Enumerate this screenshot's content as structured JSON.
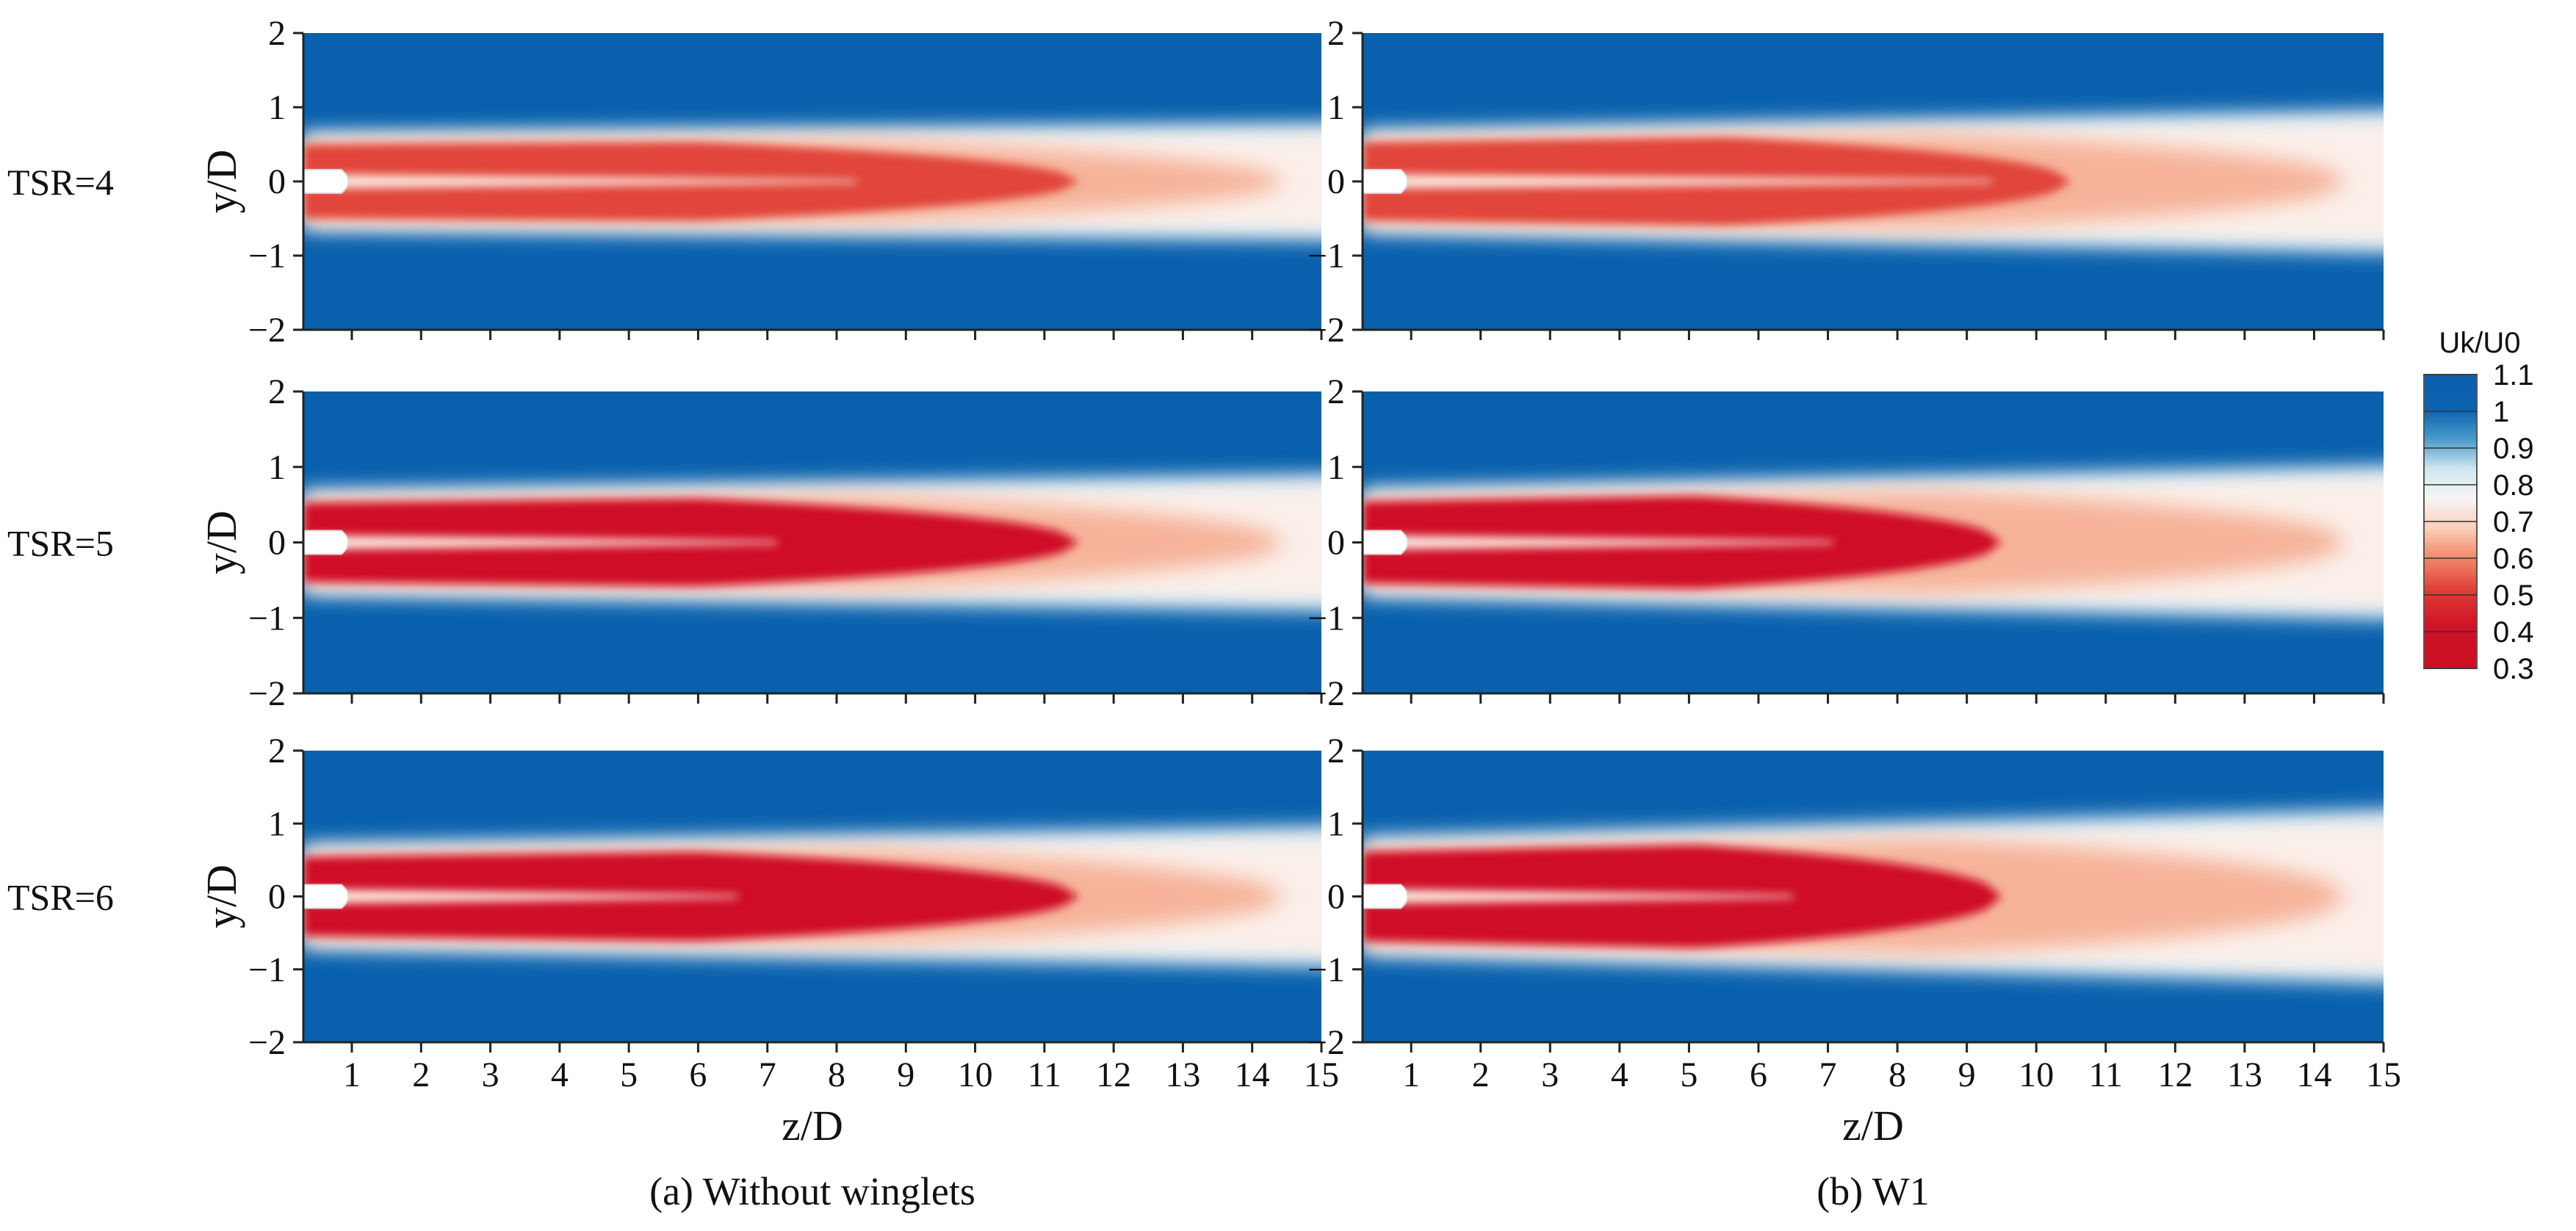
{
  "chart_data": {
    "type": "heatmap",
    "quantity": "Uk/U0",
    "x_axis": {
      "label": "z/D",
      "range": [
        0.3,
        15
      ],
      "ticks": [
        1,
        2,
        3,
        4,
        5,
        6,
        7,
        8,
        9,
        10,
        11,
        12,
        13,
        14,
        15
      ]
    },
    "y_axis": {
      "label": "y/D",
      "range": [
        -2,
        2
      ],
      "ticks": [
        -2,
        -1,
        0,
        1,
        2
      ],
      "tick_labels": [
        "−2",
        "−1",
        "0",
        "1",
        "2"
      ]
    },
    "columns": [
      {
        "caption": "(a) Without winglets"
      },
      {
        "caption": "(b) W1"
      }
    ],
    "rows": [
      {
        "label": "TSR=4"
      },
      {
        "label": "TSR=5"
      },
      {
        "label": "TSR=6"
      }
    ],
    "panels": [
      {
        "row": "TSR=4",
        "column": "Without winglets",
        "wake_half_width_start": 0.55,
        "wake_half_width_end": 0.65,
        "min_velocity": 0.5,
        "deficit_recovery_z": 10
      },
      {
        "row": "TSR=4",
        "column": "W1",
        "wake_half_width_start": 0.58,
        "wake_half_width_end": 0.8,
        "min_velocity": 0.55,
        "deficit_recovery_z": 9
      },
      {
        "row": "TSR=5",
        "column": "Without winglets",
        "wake_half_width_start": 0.58,
        "wake_half_width_end": 0.75,
        "min_velocity": 0.4,
        "deficit_recovery_z": 10
      },
      {
        "row": "TSR=5",
        "column": "W1",
        "wake_half_width_start": 0.6,
        "wake_half_width_end": 0.85,
        "min_velocity": 0.35,
        "deficit_recovery_z": 8
      },
      {
        "row": "TSR=6",
        "column": "Without winglets",
        "wake_half_width_start": 0.6,
        "wake_half_width_end": 0.8,
        "min_velocity": 0.35,
        "deficit_recovery_z": 10
      },
      {
        "row": "TSR=6",
        "column": "W1",
        "wake_half_width_start": 0.68,
        "wake_half_width_end": 1.0,
        "min_velocity": 0.3,
        "deficit_recovery_z": 8
      }
    ],
    "colorbar": {
      "title": "Uk/U0",
      "levels": [
        1.1,
        1,
        0.9,
        0.8,
        0.7,
        0.6,
        0.5,
        0.4,
        0.3
      ],
      "colors": [
        "#0b5fae",
        "#2f86c0",
        "#9fd0e3",
        "#f2f5f7",
        "#fbd8c6",
        "#f49878",
        "#e8543c",
        "#d1172e",
        "#cf1126"
      ]
    }
  },
  "colors": {
    "freestream": "#0961ad",
    "deficit": "#cf1126",
    "hub": "#ffffff"
  }
}
